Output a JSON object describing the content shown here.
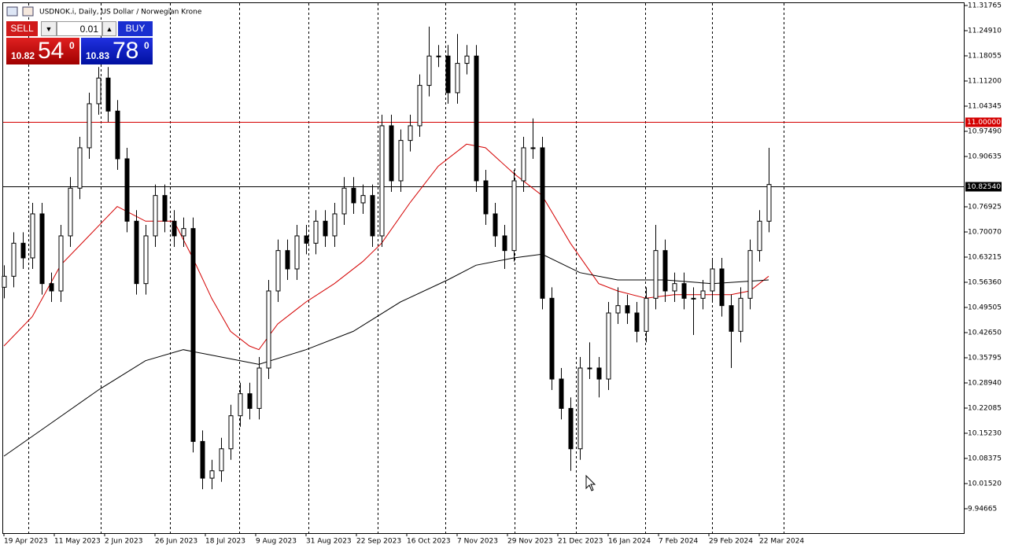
{
  "header": {
    "title": "USDNOK.i, Daily, US Dollar / Norwegian Krone"
  },
  "trade_panel": {
    "sell": "SELL",
    "buy": "BUY",
    "volume": "0.01",
    "sell_price": {
      "main": "10.82",
      "big": "54",
      "sup": "0"
    },
    "buy_price": {
      "main": "10.83",
      "big": "78",
      "sup": "0"
    }
  },
  "chart_data": {
    "type": "candlestick",
    "x": [
      0,
      3,
      6,
      9,
      12,
      15,
      18,
      21,
      24,
      27,
      30,
      33,
      36,
      39,
      42,
      45,
      48,
      51,
      54,
      57,
      60,
      63,
      66,
      69,
      72,
      75,
      78,
      81,
      84,
      87,
      90,
      93,
      96,
      99,
      102,
      105,
      108,
      111,
      114,
      117,
      120,
      123,
      126,
      129,
      132,
      135,
      138,
      141,
      144,
      147,
      150,
      153,
      156,
      159,
      162,
      165,
      168,
      171,
      174,
      177,
      180,
      183,
      186,
      189,
      192,
      195,
      198,
      201,
      204,
      207,
      210,
      213,
      216,
      219,
      222,
      225,
      228,
      231,
      234,
      237,
      240,
      243
    ],
    "open": [
      10.55,
      10.58,
      10.67,
      10.63,
      10.75,
      10.56,
      10.54,
      10.69,
      10.82,
      10.93,
      11.05,
      11.12,
      11.03,
      10.9,
      10.73,
      10.56,
      10.69,
      10.8,
      10.73,
      10.69,
      10.71,
      10.13,
      10.03,
      10.05,
      10.11,
      10.2,
      10.26,
      10.22,
      10.33,
      10.54,
      10.65,
      10.6,
      10.69,
      10.67,
      10.73,
      10.69,
      10.75,
      10.82,
      10.78,
      10.8,
      10.69,
      10.99,
      10.84,
      10.95,
      10.99,
      11.1,
      11.18,
      11.18,
      11.08,
      11.16,
      11.18,
      10.84,
      10.75,
      10.69,
      10.65,
      10.84,
      10.93,
      10.93,
      10.52,
      10.3,
      10.22,
      10.11,
      10.33,
      10.33,
      10.3,
      10.48,
      10.5,
      10.48,
      10.43,
      10.52,
      10.65,
      10.54,
      10.56,
      10.52,
      10.52,
      10.54,
      10.6,
      10.5,
      10.43,
      10.52,
      10.65,
      10.73
    ],
    "high": [
      10.61,
      10.7,
      10.7,
      10.78,
      10.78,
      10.59,
      10.72,
      10.85,
      10.96,
      11.08,
      11.15,
      11.15,
      11.06,
      10.93,
      10.76,
      10.72,
      10.83,
      10.83,
      10.76,
      10.74,
      10.74,
      10.16,
      10.08,
      10.14,
      10.23,
      10.29,
      10.29,
      10.36,
      10.57,
      10.68,
      10.68,
      10.72,
      10.72,
      10.76,
      10.76,
      10.78,
      10.85,
      10.85,
      10.83,
      10.83,
      11.02,
      11.02,
      10.98,
      11.02,
      11.13,
      11.26,
      11.21,
      11.21,
      11.24,
      11.21,
      11.21,
      10.87,
      10.78,
      10.72,
      10.87,
      10.96,
      11.01,
      10.96,
      10.55,
      10.33,
      10.25,
      10.36,
      10.4,
      10.36,
      10.51,
      10.55,
      10.53,
      10.51,
      10.55,
      10.72,
      10.68,
      10.59,
      10.59,
      10.55,
      10.57,
      10.63,
      10.63,
      10.53,
      10.55,
      10.68,
      10.76,
      10.93
    ],
    "low": [
      10.52,
      10.55,
      10.6,
      10.6,
      10.53,
      10.51,
      10.51,
      10.66,
      10.79,
      10.9,
      11.02,
      11.0,
      10.87,
      10.7,
      10.53,
      10.53,
      10.66,
      10.7,
      10.66,
      10.66,
      10.1,
      10.0,
      10.0,
      10.02,
      10.08,
      10.17,
      10.19,
      10.19,
      10.3,
      10.51,
      10.57,
      10.57,
      10.64,
      10.64,
      10.66,
      10.66,
      10.72,
      10.75,
      10.75,
      10.66,
      10.66,
      10.81,
      10.81,
      10.92,
      10.96,
      11.07,
      11.15,
      11.05,
      11.05,
      11.13,
      10.81,
      10.72,
      10.66,
      10.6,
      10.62,
      10.81,
      10.9,
      10.49,
      10.27,
      10.19,
      10.05,
      10.08,
      10.3,
      10.25,
      10.27,
      10.45,
      10.45,
      10.4,
      10.4,
      10.49,
      10.51,
      10.51,
      10.49,
      10.42,
      10.49,
      10.51,
      10.47,
      10.33,
      10.4,
      10.49,
      10.62,
      10.7
    ],
    "close": [
      10.58,
      10.67,
      10.63,
      10.75,
      10.56,
      10.54,
      10.69,
      10.82,
      10.93,
      11.05,
      11.12,
      11.03,
      10.9,
      10.73,
      10.56,
      10.69,
      10.8,
      10.73,
      10.69,
      10.71,
      10.13,
      10.03,
      10.05,
      10.11,
      10.2,
      10.26,
      10.22,
      10.33,
      10.54,
      10.65,
      10.6,
      10.69,
      10.67,
      10.73,
      10.69,
      10.75,
      10.82,
      10.78,
      10.8,
      10.69,
      10.99,
      10.84,
      10.95,
      10.99,
      11.1,
      11.18,
      11.18,
      11.08,
      11.16,
      11.18,
      10.84,
      10.75,
      10.69,
      10.65,
      10.84,
      10.93,
      10.93,
      10.52,
      10.3,
      10.22,
      10.11,
      10.33,
      10.33,
      10.3,
      10.48,
      10.5,
      10.48,
      10.43,
      10.52,
      10.65,
      10.54,
      10.56,
      10.52,
      10.52,
      10.54,
      10.6,
      10.5,
      10.43,
      10.52,
      10.65,
      10.73,
      10.83
    ],
    "color": "#000000",
    "up_fill": "#ffffff",
    "down_fill": "#000000",
    "xlim": [
      -1.25,
      305
    ],
    "xticks": [
      {
        "value": 0,
        "label": "19 Apr 2023"
      },
      {
        "value": 16,
        "label": "11 May 2023"
      },
      {
        "value": 32,
        "label": "2 Jun 2023"
      },
      {
        "value": 48,
        "label": "26 Jun 2023"
      },
      {
        "value": 64,
        "label": "18 Jul 2023"
      },
      {
        "value": 80,
        "label": "9 Aug 2023"
      },
      {
        "value": 96,
        "label": "31 Aug 2023"
      },
      {
        "value": 112,
        "label": "22 Sep 2023"
      },
      {
        "value": 128,
        "label": "16 Oct 2023"
      },
      {
        "value": 144,
        "label": "7 Nov 2023"
      },
      {
        "value": 160,
        "label": "29 Nov 2023"
      },
      {
        "value": 176,
        "label": "21 Dec 2023"
      },
      {
        "value": 192,
        "label": "16 Jan 2024"
      },
      {
        "value": 208,
        "label": "7 Feb 2024"
      },
      {
        "value": 224,
        "label": "29 Feb 2024"
      },
      {
        "value": 240,
        "label": "22 Mar 2024"
      }
    ],
    "ylim": [
      9.8802,
      11.3262
    ],
    "yticks": [
      11.31765,
      {
        "value": 11.2491,
        "label": "11.24910"
      },
      11.18055,
      {
        "value": 11.112,
        "label": "11.11200"
      },
      11.04345,
      {
        "value": 10.9749,
        "label": "10.97490"
      },
      10.90635,
      {
        "value": 10.76925,
        "label": "10.76925"
      },
      {
        "value": 10.7007,
        "label": "10.70070"
      },
      10.63215,
      {
        "value": 10.5636,
        "label": "10.56360"
      },
      10.49505,
      {
        "value": 10.4265,
        "label": "10.42650"
      },
      10.35795,
      {
        "value": 10.2894,
        "label": "10.28940"
      },
      10.22085,
      {
        "value": 10.1523,
        "label": "10.15230"
      },
      10.08375,
      {
        "value": 10.0152,
        "label": "10.01520"
      },
      9.94665
    ],
    "lines": [
      {
        "color": "#d40000",
        "x": [
          0,
          9,
          18,
          27,
          36,
          45,
          54,
          60,
          66,
          72,
          78,
          81,
          87,
          96,
          105,
          114,
          120,
          129,
          138,
          147,
          153,
          162,
          171,
          180,
          189,
          195,
          204,
          213,
          222,
          231,
          237,
          243
        ],
        "values": [
          10.39,
          10.47,
          10.61,
          10.69,
          10.77,
          10.73,
          10.73,
          10.63,
          10.52,
          10.43,
          10.39,
          10.38,
          10.45,
          10.51,
          10.56,
          10.62,
          10.67,
          10.78,
          10.88,
          10.94,
          10.93,
          10.86,
          10.8,
          10.67,
          10.56,
          10.54,
          10.52,
          10.53,
          10.53,
          10.53,
          10.54,
          10.58
        ]
      },
      {
        "color": "#000000",
        "x": [
          0,
          15,
          30,
          45,
          57,
          69,
          81,
          96,
          111,
          126,
          141,
          150,
          162,
          171,
          183,
          195,
          210,
          225,
          243
        ],
        "values": [
          10.09,
          10.18,
          10.27,
          10.35,
          10.38,
          10.36,
          10.34,
          10.38,
          10.43,
          10.51,
          10.57,
          10.61,
          10.63,
          10.64,
          10.59,
          10.57,
          10.57,
          10.56,
          10.57
        ]
      }
    ],
    "levels": [
      {
        "value": 11,
        "label": "11.00000",
        "color": "#d40000"
      },
      {
        "value": 10.8254,
        "label": "10.82540",
        "color": "#000000"
      }
    ]
  }
}
